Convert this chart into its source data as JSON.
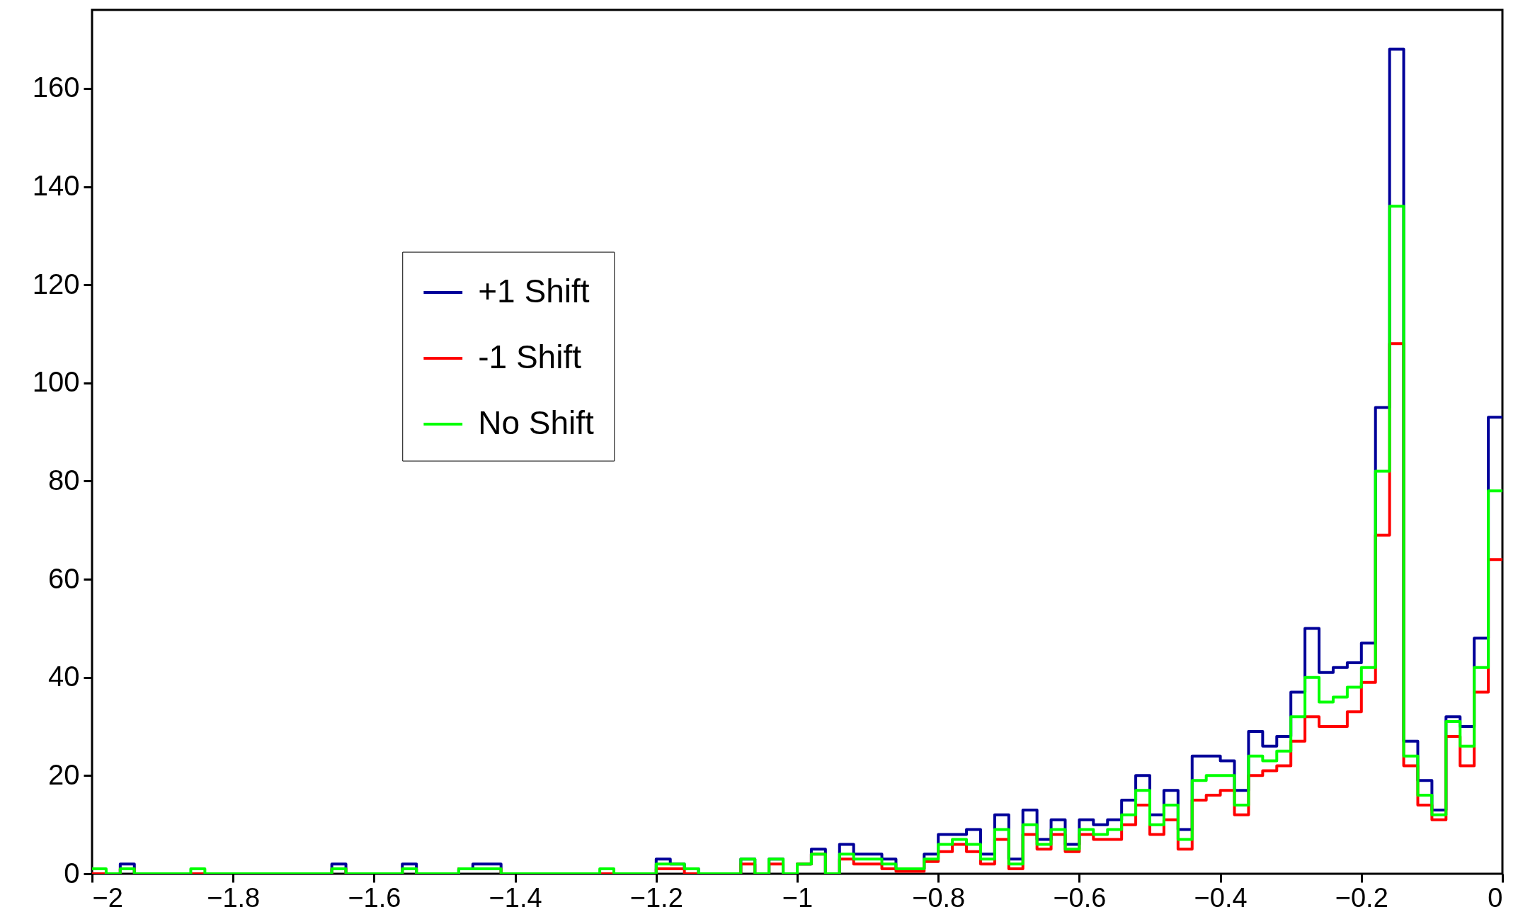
{
  "chart_data": {
    "type": "histogram",
    "bins": [
      -2,
      -1.98,
      -1.96,
      -1.94,
      -1.92,
      -1.9,
      -1.88,
      -1.86,
      -1.84,
      -1.82,
      -1.8,
      -1.78,
      -1.76,
      -1.74,
      -1.72,
      -1.7,
      -1.68,
      -1.66,
      -1.64,
      -1.62,
      -1.6,
      -1.58,
      -1.56,
      -1.54,
      -1.52,
      -1.5,
      -1.48,
      -1.46,
      -1.44,
      -1.42,
      -1.4,
      -1.38,
      -1.36,
      -1.34,
      -1.32,
      -1.3,
      -1.28,
      -1.26,
      -1.24,
      -1.22,
      -1.2,
      -1.18,
      -1.16,
      -1.14,
      -1.12,
      -1.1,
      -1.08,
      -1.06,
      -1.04,
      -1.02,
      -1,
      -0.98,
      -0.96,
      -0.94,
      -0.92,
      -0.9,
      -0.88,
      -0.86,
      -0.84,
      -0.82,
      -0.8,
      -0.78,
      -0.76,
      -0.74,
      -0.72,
      -0.7,
      -0.68,
      -0.66,
      -0.64,
      -0.62,
      -0.6,
      -0.58,
      -0.56,
      -0.54,
      -0.52,
      -0.5,
      -0.48,
      -0.46,
      -0.44,
      -0.42,
      -0.4,
      -0.38,
      -0.36,
      -0.34,
      -0.32,
      -0.3,
      -0.28,
      -0.26,
      -0.24,
      -0.22,
      -0.2,
      -0.18,
      -0.16,
      -0.14,
      -0.12,
      -0.1,
      -0.08,
      -0.06,
      -0.04,
      -0.02,
      0
    ],
    "series": [
      {
        "name": "+1 Shift",
        "color": "#000099",
        "values": [
          0,
          0,
          2,
          0,
          0,
          0,
          0,
          0,
          0,
          0,
          0,
          0,
          0,
          0,
          0,
          0,
          0,
          2,
          0,
          0,
          0,
          0,
          2,
          0,
          0,
          0,
          1,
          2,
          2,
          0,
          0,
          0,
          0,
          0,
          0,
          0,
          0,
          0,
          0,
          0,
          3,
          2,
          1,
          0,
          0,
          0,
          3,
          0,
          3,
          0,
          2,
          5,
          0,
          6,
          4,
          4,
          3,
          1,
          1,
          4,
          8,
          8,
          9,
          4,
          12,
          3,
          13,
          7,
          11,
          6,
          11,
          10,
          11,
          15,
          20,
          12,
          17,
          9,
          24,
          24,
          23,
          17,
          29,
          26,
          28,
          37,
          50,
          41,
          42,
          43,
          47,
          95,
          168,
          27,
          19,
          13,
          32,
          30,
          48,
          93
        ]
      },
      {
        "name": "-1 Shift",
        "color": "#ff0000",
        "values": [
          0,
          0,
          1,
          0,
          0,
          0,
          0,
          0,
          0,
          0,
          0,
          0,
          0,
          0,
          0,
          0,
          0,
          1,
          0,
          0,
          0,
          0,
          1,
          0,
          0,
          0,
          1,
          1,
          1,
          0,
          0,
          0,
          0,
          0,
          0,
          0,
          0,
          0,
          0,
          0,
          1,
          1,
          0,
          0,
          0,
          0,
          2,
          0,
          2,
          0,
          2,
          4,
          0,
          3,
          2,
          2,
          1,
          0.5,
          0.5,
          2.5,
          4.5,
          6,
          4.5,
          2,
          7,
          1,
          8,
          5,
          8,
          4.5,
          8,
          7,
          7,
          10,
          14,
          8,
          11,
          5,
          15,
          16,
          17,
          12,
          20,
          21,
          22,
          27,
          32,
          30,
          30,
          33,
          39,
          69,
          108,
          22,
          14,
          11,
          28,
          22,
          37,
          64
        ]
      },
      {
        "name": "No Shift",
        "color": "#00ff00",
        "values": [
          1,
          0,
          1,
          0,
          0,
          0,
          0,
          1,
          0,
          0,
          0,
          0,
          0,
          0,
          0,
          0,
          0,
          1,
          0,
          0,
          0,
          0,
          1,
          0,
          0,
          0,
          1,
          1,
          1,
          0,
          0,
          0,
          0,
          0,
          0,
          0,
          1,
          0,
          0,
          0,
          2,
          2,
          1,
          0,
          0,
          0,
          3,
          0,
          3,
          0,
          2,
          4,
          0,
          4,
          3,
          3,
          2,
          1,
          1,
          3,
          6,
          7,
          6,
          3,
          9,
          2,
          10,
          6,
          9,
          5,
          9,
          8,
          9,
          12,
          17,
          10,
          14,
          7,
          19,
          20,
          20,
          14,
          24,
          23,
          25,
          32,
          40,
          35,
          36,
          38,
          42,
          82,
          136,
          24,
          16,
          12,
          31,
          26,
          42,
          78
        ]
      }
    ],
    "xlim": [
      -2,
      0
    ],
    "xticks": [
      -2,
      -1.8,
      -1.6,
      -1.4,
      -1.2,
      -1,
      -0.8,
      -0.6,
      -0.4,
      -0.2,
      0
    ],
    "ylim": [
      0,
      176
    ],
    "yticks": [
      0,
      20,
      40,
      60,
      80,
      100,
      120,
      140,
      160
    ],
    "grid": false,
    "legend": "center"
  }
}
